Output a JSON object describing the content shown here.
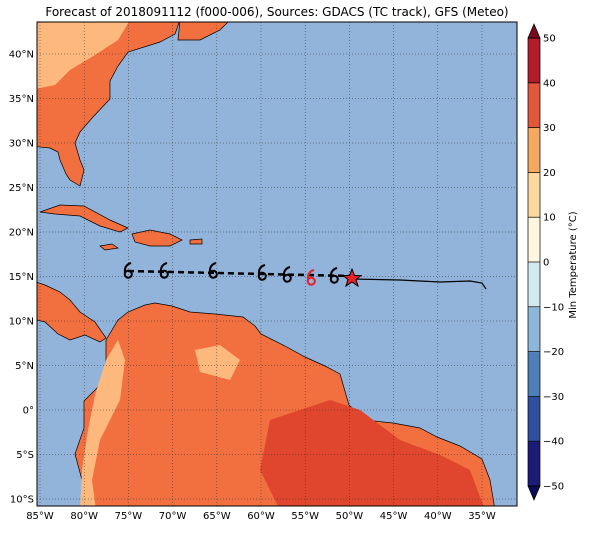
{
  "title": "Forecast of 2018091112 (f000-006), Sources: GDACS (TC track), GFS (Meteo)",
  "map": {
    "lon_labels": [
      "85°W",
      "80°W",
      "75°W",
      "70°W",
      "65°W",
      "60°W",
      "55°W",
      "50°W",
      "45°W",
      "40°W",
      "35°W"
    ],
    "lat_labels": [
      "40°N",
      "35°N",
      "30°N",
      "25°N",
      "20°N",
      "15°N",
      "10°N",
      "5°N",
      "0°",
      "5°S",
      "10°S"
    ]
  },
  "colorbar": {
    "label": "Min Temperature (°C)",
    "ticks": [
      {
        "value": 50,
        "label": "50"
      },
      {
        "value": 40,
        "label": "40"
      },
      {
        "value": 30,
        "label": "30"
      },
      {
        "value": 20,
        "label": "20"
      },
      {
        "value": 10,
        "label": "10"
      },
      {
        "value": 0,
        "label": "0"
      },
      {
        "value": -10,
        "label": "−10"
      },
      {
        "value": -20,
        "label": "−20"
      },
      {
        "value": -30,
        "label": "−30"
      },
      {
        "value": -40,
        "label": "−40"
      },
      {
        "value": -50,
        "label": "−50"
      }
    ],
    "lim": [
      -50,
      50
    ],
    "colors": [
      "#1c1c78",
      "#2f4f9f",
      "#4d80b8",
      "#8cb7d8",
      "#d3e9f1",
      "#fff6e0",
      "#fdd9a0",
      "#f7a860",
      "#e1573a",
      "#b51c2a"
    ],
    "over": "#7a0a1e",
    "under": "#0d0d55"
  }
}
